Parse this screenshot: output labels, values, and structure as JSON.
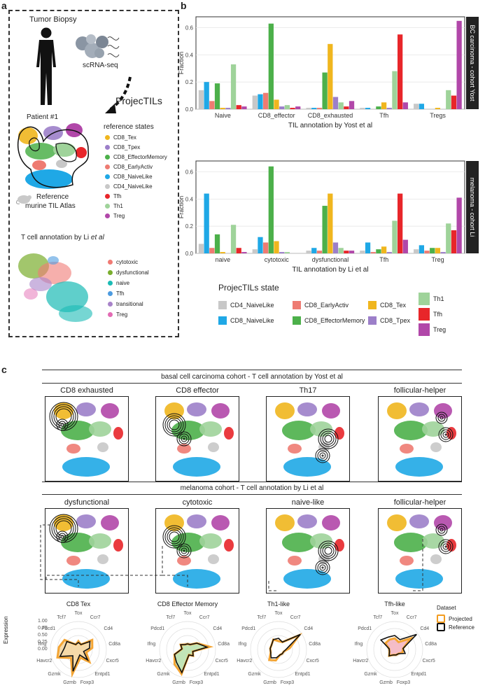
{
  "panels": {
    "a": "a",
    "b": "b",
    "c": "c"
  },
  "panel_a": {
    "biopsy_title": "Tumor Biopsy",
    "scrnaseq": "scRNA-seq",
    "patient": "Patient #1",
    "projectils": "ProjecTILs",
    "ref_states_title": "reference states",
    "ref_states": [
      {
        "label": "CD8_Tex",
        "color": "#F0B61E"
      },
      {
        "label": "CD8_Tpex",
        "color": "#9C7FC9"
      },
      {
        "label": "CD8_EffectorMemory",
        "color": "#4CB04A"
      },
      {
        "label": "CD8_EarlyActiv",
        "color": "#EE7B72"
      },
      {
        "label": "CD8_NaiveLike",
        "color": "#1FA8E6"
      },
      {
        "label": "CD4_NaiveLike",
        "color": "#C8C8C8"
      },
      {
        "label": "Tfh",
        "color": "#E8262A"
      },
      {
        "label": "Th1",
        "color": "#9FD39A"
      },
      {
        "label": "Treg",
        "color": "#B147A9"
      }
    ],
    "atlas_label_1": "Reference",
    "atlas_label_2": "murine TIL Atlas",
    "li_title": "T cell annotation by Li",
    "li_title_italic": "et al",
    "li_states": [
      {
        "label": "cytotoxic",
        "color": "#F07A74"
      },
      {
        "label": "dysfunctional",
        "color": "#7AAE2E"
      },
      {
        "label": "naive",
        "color": "#1BBBB5"
      },
      {
        "label": "Tfh",
        "color": "#4D9BE0"
      },
      {
        "label": "transitional",
        "color": "#A883C9"
      },
      {
        "label": "Treg",
        "color": "#E36BB4"
      }
    ]
  },
  "chart_data": [
    {
      "type": "bar",
      "strip": "BC carcinoma - cohort Yost",
      "xlabel": "TIL annotation by Yost  et al",
      "ylabel": "Fraction",
      "ylim": [
        0,
        0.68
      ],
      "yticks": [
        "0.0",
        "0.2",
        "0.4",
        "0.6"
      ],
      "categories": [
        "Naive",
        "CD8_effector",
        "CD8_exhausted",
        "Tfh",
        "Tregs"
      ],
      "series": [
        {
          "name": "CD4_NaiveLike",
          "color": "#C8C8C8",
          "values": [
            0.14,
            0.1,
            0.01,
            0.01,
            0.04
          ]
        },
        {
          "name": "CD8_NaiveLike",
          "color": "#1FA8E6",
          "values": [
            0.2,
            0.11,
            0.01,
            0.01,
            0.04
          ]
        },
        {
          "name": "CD8_EarlyActiv",
          "color": "#EE7B72",
          "values": [
            0.06,
            0.12,
            0.01,
            0.0,
            0.0
          ]
        },
        {
          "name": "CD8_EffectorMemory",
          "color": "#4CB04A",
          "values": [
            0.19,
            0.63,
            0.27,
            0.02,
            0.0
          ]
        },
        {
          "name": "CD8_Tex",
          "color": "#F0B61E",
          "values": [
            0.01,
            0.07,
            0.48,
            0.05,
            0.01
          ]
        },
        {
          "name": "CD8_Tpex",
          "color": "#9C7FC9",
          "values": [
            0.01,
            0.02,
            0.09,
            0.01,
            0.0
          ]
        },
        {
          "name": "Th1",
          "color": "#9FD39A",
          "values": [
            0.33,
            0.03,
            0.05,
            0.28,
            0.14
          ]
        },
        {
          "name": "Tfh",
          "color": "#E8262A",
          "values": [
            0.03,
            0.01,
            0.02,
            0.55,
            0.1
          ]
        },
        {
          "name": "Treg",
          "color": "#B147A9",
          "values": [
            0.02,
            0.02,
            0.06,
            0.05,
            0.65
          ]
        }
      ]
    },
    {
      "type": "bar",
      "strip": "melanoma - cohort Li",
      "xlabel": "TIL annotation by Li et al",
      "ylabel": "Fraction",
      "ylim": [
        0,
        0.68
      ],
      "yticks": [
        "0.0",
        "0.2",
        "0.4",
        "0.6"
      ],
      "categories": [
        "naive",
        "cytotoxic",
        "dysfunctional",
        "Tfh",
        "Treg"
      ],
      "series": [
        {
          "name": "CD4_NaiveLike",
          "color": "#C8C8C8",
          "values": [
            0.07,
            0.03,
            0.02,
            0.02,
            0.03
          ]
        },
        {
          "name": "CD8_NaiveLike",
          "color": "#1FA8E6",
          "values": [
            0.44,
            0.12,
            0.04,
            0.08,
            0.06
          ]
        },
        {
          "name": "CD8_EarlyActiv",
          "color": "#EE7B72",
          "values": [
            0.04,
            0.08,
            0.02,
            0.01,
            0.02
          ]
        },
        {
          "name": "CD8_EffectorMemory",
          "color": "#4CB04A",
          "values": [
            0.14,
            0.64,
            0.35,
            0.03,
            0.04
          ]
        },
        {
          "name": "CD8_Tex",
          "color": "#F0B61E",
          "values": [
            0.01,
            0.09,
            0.44,
            0.05,
            0.04
          ]
        },
        {
          "name": "CD8_Tpex",
          "color": "#9C7FC9",
          "values": [
            0.0,
            0.01,
            0.08,
            0.01,
            0.01
          ]
        },
        {
          "name": "Th1",
          "color": "#9FD39A",
          "values": [
            0.21,
            0.01,
            0.04,
            0.24,
            0.22
          ]
        },
        {
          "name": "Tfh",
          "color": "#E8262A",
          "values": [
            0.04,
            0.0,
            0.02,
            0.44,
            0.17
          ]
        },
        {
          "name": "Treg",
          "color": "#B147A9",
          "values": [
            0.01,
            0.0,
            0.02,
            0.1,
            0.41
          ]
        }
      ]
    }
  ],
  "legend_b": {
    "title": "ProjecTILs state",
    "items": [
      {
        "label": "CD4_NaiveLike",
        "color": "#C8C8C8"
      },
      {
        "label": "CD8_NaiveLike",
        "color": "#1FA8E6"
      },
      {
        "label": "CD8_EarlyActiv",
        "color": "#EE7B72"
      },
      {
        "label": "CD8_EffectorMemory",
        "color": "#4CB04A"
      },
      {
        "label": "CD8_Tex",
        "color": "#F0B61E"
      },
      {
        "label": "CD8_Tpex",
        "color": "#9C7FC9"
      },
      {
        "label": "Th1",
        "color": "#9FD39A"
      },
      {
        "label": "Tfh",
        "color": "#E8262A"
      },
      {
        "label": "Treg",
        "color": "#B147A9"
      }
    ]
  },
  "panel_c": {
    "row1_title": "basal cell carcinoma cohort - T cell annotation by Yost et al",
    "row1": [
      "CD8 exhausted",
      "CD8 effector",
      "Th17",
      "follicular-helper"
    ],
    "row2_title": "melanoma cohort - T cell annotation by Li et al",
    "row2": [
      "dysfunctional",
      "cytotoxic",
      "naive-like",
      "follicular-helper"
    ],
    "radars": [
      "CD8 Tex",
      "CD8 Effector Memory",
      "Th1-like",
      "Tfh-like"
    ],
    "radar_genes": [
      "Tox",
      "Ccr7",
      "Cd4",
      "Cd8a",
      "Cxcr5",
      "Entpd1",
      "Foxp3",
      "Gzmb",
      "Gzmk",
      "Havcr2",
      "Ifng",
      "Pdcd1",
      "Tcf7"
    ],
    "radar_ylabel": "Expression",
    "radar_ticks": [
      "1.00",
      "0.75",
      "0.50",
      "0.25",
      "0.00"
    ],
    "dataset_title": "Dataset",
    "dataset_items": [
      {
        "label": "Projected",
        "color": "#F39C1F"
      },
      {
        "label": "Reference",
        "color": "#111111"
      }
    ]
  }
}
